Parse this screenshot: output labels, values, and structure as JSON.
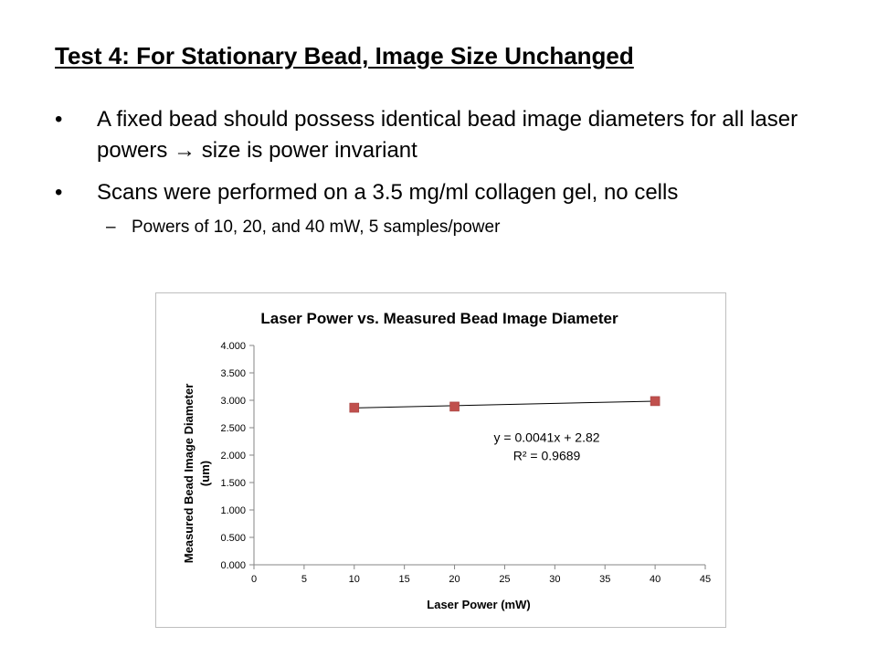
{
  "slide": {
    "title": "Test 4: For Stationary Bead, Image Size Unchanged",
    "bullets": [
      {
        "text_before_arrow": "A fixed bead should possess identical bead image diameters for all laser powers ",
        "arrow": "→",
        "text_after_arrow": " size is power invariant"
      },
      {
        "text": "Scans were performed on a 3.5 mg/ml collagen gel, no cells"
      }
    ],
    "sub_bullet": {
      "dash": "–",
      "text": "Powers of 10, 20, and 40 mW, 5 samples/power"
    },
    "bullet_symbol": "•"
  },
  "chart_data": {
    "type": "scatter",
    "title": "Laser Power vs. Measured Bead Image Diameter",
    "xlabel": "Laser Power (mW)",
    "ylabel_lines": [
      "Measured Bead Image Diameter",
      "(um)"
    ],
    "xlim": [
      0,
      45
    ],
    "ylim": [
      0,
      4
    ],
    "x_ticks": [
      0,
      5,
      10,
      15,
      20,
      25,
      30,
      35,
      40,
      45
    ],
    "y_ticks": [
      0,
      0.5,
      1,
      1.5,
      2,
      2.5,
      3,
      3.5,
      4
    ],
    "y_tick_labels": [
      "0.000",
      "0.500",
      "1.000",
      "1.500",
      "2.000",
      "2.500",
      "3.000",
      "3.500",
      "4.000"
    ],
    "grid": false,
    "legend": "none",
    "series": [
      {
        "x": [
          10,
          20,
          40
        ],
        "y": [
          2.865,
          2.885,
          2.985
        ],
        "marker": "square",
        "color": "#c0504d"
      }
    ],
    "trendline": {
      "type": "linear",
      "slope": 0.0041,
      "intercept": 2.82,
      "x_range": [
        10,
        40
      ],
      "color": "#000000"
    },
    "annotations": {
      "equation": "y = 0.0041x + 2.82",
      "r_squared": "R² = 0.9689"
    }
  }
}
